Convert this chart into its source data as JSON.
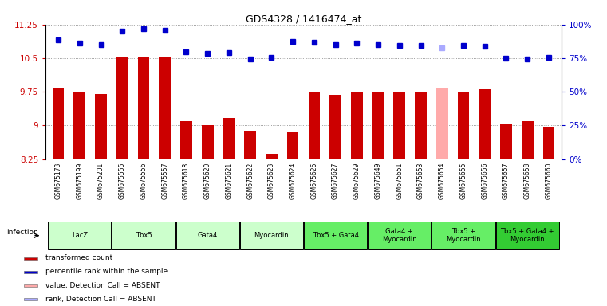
{
  "title": "GDS4328 / 1416474_at",
  "samples": [
    "GSM675173",
    "GSM675199",
    "GSM675201",
    "GSM675555",
    "GSM675556",
    "GSM675557",
    "GSM675618",
    "GSM675620",
    "GSM675621",
    "GSM675622",
    "GSM675623",
    "GSM675624",
    "GSM675626",
    "GSM675627",
    "GSM675629",
    "GSM675649",
    "GSM675651",
    "GSM675653",
    "GSM675654",
    "GSM675655",
    "GSM675656",
    "GSM675657",
    "GSM675658",
    "GSM675660"
  ],
  "bar_values": [
    9.83,
    9.75,
    9.7,
    10.54,
    10.53,
    10.54,
    9.09,
    9.0,
    9.17,
    8.88,
    8.37,
    8.84,
    9.75,
    9.68,
    9.73,
    9.75,
    9.75,
    9.75,
    9.83,
    9.75,
    9.81,
    9.05,
    9.1,
    8.98
  ],
  "bar_colors": [
    "#cc0000",
    "#cc0000",
    "#cc0000",
    "#cc0000",
    "#cc0000",
    "#cc0000",
    "#cc0000",
    "#cc0000",
    "#cc0000",
    "#cc0000",
    "#cc0000",
    "#cc0000",
    "#cc0000",
    "#cc0000",
    "#cc0000",
    "#cc0000",
    "#cc0000",
    "#cc0000",
    "#ffaaaa",
    "#cc0000",
    "#cc0000",
    "#cc0000",
    "#cc0000",
    "#cc0000"
  ],
  "dot_values": [
    10.9,
    10.83,
    10.8,
    11.1,
    11.15,
    11.12,
    10.65,
    10.6,
    10.63,
    10.48,
    10.51,
    10.88,
    10.85,
    10.8,
    10.83,
    10.8,
    10.78,
    10.79,
    10.73,
    10.79,
    10.77,
    10.5,
    10.49,
    10.51
  ],
  "dot_colors": [
    "#0000cc",
    "#0000cc",
    "#0000cc",
    "#0000cc",
    "#0000cc",
    "#0000cc",
    "#0000cc",
    "#0000cc",
    "#0000cc",
    "#0000cc",
    "#0000cc",
    "#0000cc",
    "#0000cc",
    "#0000cc",
    "#0000cc",
    "#0000cc",
    "#0000cc",
    "#0000cc",
    "#aaaaff",
    "#0000cc",
    "#0000cc",
    "#0000cc",
    "#0000cc",
    "#0000cc"
  ],
  "ymin": 8.25,
  "ymax": 11.25,
  "yticks_left": [
    8.25,
    9.0,
    9.75,
    10.5,
    11.25
  ],
  "ytick_labels_left": [
    "8.25",
    "9",
    "9.75",
    "10.5",
    "11.25"
  ],
  "ytick_labels_right": [
    "0%",
    "25%",
    "50%",
    "75%",
    "100%"
  ],
  "groups": [
    {
      "label": "LacZ",
      "start": 0,
      "end": 2,
      "color": "#ccffcc"
    },
    {
      "label": "Tbx5",
      "start": 3,
      "end": 5,
      "color": "#ccffcc"
    },
    {
      "label": "Gata4",
      "start": 6,
      "end": 8,
      "color": "#ccffcc"
    },
    {
      "label": "Myocardin",
      "start": 9,
      "end": 11,
      "color": "#ccffcc"
    },
    {
      "label": "Tbx5 + Gata4",
      "start": 12,
      "end": 14,
      "color": "#66ee66"
    },
    {
      "label": "Gata4 +\nMyocardin",
      "start": 15,
      "end": 17,
      "color": "#66ee66"
    },
    {
      "label": "Tbx5 +\nMyocardin",
      "start": 18,
      "end": 20,
      "color": "#66ee66"
    },
    {
      "label": "Tbx5 + Gata4 +\nMyocardin",
      "start": 21,
      "end": 23,
      "color": "#33cc33"
    }
  ],
  "infection_label": "infection",
  "legend_items": [
    {
      "color": "#cc0000",
      "label": "transformed count"
    },
    {
      "color": "#0000cc",
      "label": "percentile rank within the sample"
    },
    {
      "color": "#ffaaaa",
      "label": "value, Detection Call = ABSENT"
    },
    {
      "color": "#aaaaff",
      "label": "rank, Detection Call = ABSENT"
    }
  ],
  "sample_bg_color": "#cccccc",
  "bar_bottom": 8.25
}
